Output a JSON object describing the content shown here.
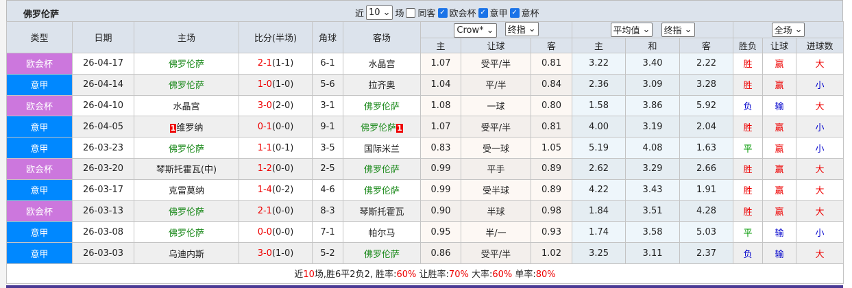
{
  "title": "佛罗伦萨",
  "filters": {
    "recent_label": "近",
    "count": "10",
    "unit": "场",
    "same_away": "同客",
    "same_away_checked": false,
    "leagues": [
      {
        "label": "欧会杯",
        "checked": true
      },
      {
        "label": "意甲",
        "checked": true
      },
      {
        "label": "意杯",
        "checked": true
      }
    ]
  },
  "headers": {
    "type": "类型",
    "date": "日期",
    "home": "主场",
    "score": "比分(半场)",
    "corner": "角球",
    "away": "客场",
    "company_select": "Crow*",
    "handicap_select": "终指",
    "avg_select": "平均值",
    "euro_select": "终指",
    "period_select": "全场",
    "sub": [
      "主",
      "让球",
      "客",
      "主",
      "和",
      "客",
      "胜负",
      "让球",
      "进球数"
    ]
  },
  "colors": {
    "欧会杯": "#cc77dd",
    "意甲": "#0088ff"
  },
  "rows": [
    {
      "type": "欧会杯",
      "date": "26-04-17",
      "home": "佛罗伦萨",
      "score": "2-1",
      "half": "(1-1)",
      "corner": "6-1",
      "away": "水晶宫",
      "h": "1.07",
      "hcap": "受平/半",
      "a": "0.81",
      "eh": "3.22",
      "ed": "3.40",
      "ea": "2.22",
      "res": "胜",
      "hres": "赢",
      "ou": "大"
    },
    {
      "type": "意甲",
      "date": "26-04-14",
      "home": "佛罗伦萨",
      "score": "1-0",
      "half": "(1-0)",
      "corner": "5-6",
      "away": "拉齐奥",
      "h": "1.04",
      "hcap": "平/半",
      "a": "0.84",
      "eh": "2.36",
      "ed": "3.09",
      "ea": "3.28",
      "res": "胜",
      "hres": "赢",
      "ou": "小"
    },
    {
      "type": "欧会杯",
      "date": "26-04-10",
      "home": "水晶宫",
      "score": "3-0",
      "half": "(2-0)",
      "corner": "3-1",
      "away": "佛罗伦萨",
      "h": "1.08",
      "hcap": "一球",
      "a": "0.80",
      "eh": "1.58",
      "ed": "3.86",
      "ea": "5.92",
      "res": "负",
      "hres": "输",
      "ou": "大"
    },
    {
      "type": "意甲",
      "date": "26-04-05",
      "home": "维罗纳",
      "home_card": "1",
      "score": "0-1",
      "half": "(0-0)",
      "corner": "9-1",
      "away": "佛罗伦萨",
      "away_card": "1",
      "h": "1.07",
      "hcap": "受平/半",
      "a": "0.81",
      "eh": "4.00",
      "ed": "3.19",
      "ea": "2.04",
      "res": "胜",
      "hres": "赢",
      "ou": "小"
    },
    {
      "type": "意甲",
      "date": "26-03-23",
      "home": "佛罗伦萨",
      "score": "1-1",
      "half": "(0-1)",
      "corner": "3-5",
      "away": "国际米兰",
      "h": "0.83",
      "hcap": "受一球",
      "a": "1.05",
      "eh": "5.19",
      "ed": "4.08",
      "ea": "1.63",
      "res": "平",
      "hres": "赢",
      "ou": "小"
    },
    {
      "type": "欧会杯",
      "date": "26-03-20",
      "home": "琴斯托霍瓦(中)",
      "score": "1-2",
      "half": "(0-0)",
      "corner": "2-5",
      "away": "佛罗伦萨",
      "h": "0.99",
      "hcap": "平手",
      "a": "0.89",
      "eh": "2.62",
      "ed": "3.29",
      "ea": "2.66",
      "res": "胜",
      "hres": "赢",
      "ou": "大"
    },
    {
      "type": "意甲",
      "date": "26-03-17",
      "home": "克雷莫纳",
      "score": "1-4",
      "half": "(0-2)",
      "corner": "4-6",
      "away": "佛罗伦萨",
      "h": "0.99",
      "hcap": "受半球",
      "a": "0.89",
      "eh": "4.22",
      "ed": "3.43",
      "ea": "1.91",
      "res": "胜",
      "hres": "赢",
      "ou": "大"
    },
    {
      "type": "欧会杯",
      "date": "26-03-13",
      "home": "佛罗伦萨",
      "score": "2-1",
      "half": "(0-0)",
      "corner": "8-3",
      "away": "琴斯托霍瓦",
      "h": "0.90",
      "hcap": "半球",
      "a": "0.98",
      "eh": "1.84",
      "ed": "3.51",
      "ea": "4.28",
      "res": "胜",
      "hres": "赢",
      "ou": "大"
    },
    {
      "type": "意甲",
      "date": "26-03-08",
      "home": "佛罗伦萨",
      "score": "0-0",
      "half": "(0-0)",
      "corner": "7-1",
      "away": "帕尔马",
      "h": "0.95",
      "hcap": "半/一",
      "a": "0.93",
      "eh": "1.74",
      "ed": "3.58",
      "ea": "5.03",
      "res": "平",
      "hres": "输",
      "ou": "小"
    },
    {
      "type": "意甲",
      "date": "26-03-03",
      "home": "乌迪内斯",
      "score": "3-0",
      "half": "(1-0)",
      "corner": "5-2",
      "away": "佛罗伦萨",
      "h": "0.86",
      "hcap": "受平/半",
      "a": "1.02",
      "eh": "3.25",
      "ed": "3.11",
      "ea": "2.37",
      "res": "负",
      "hres": "输",
      "ou": "大"
    }
  ],
  "footer": [
    {
      "t": "近"
    },
    {
      "t": "10",
      "red": true
    },
    {
      "t": "场,胜6平2负2, 胜率:"
    },
    {
      "t": "60%",
      "red": true
    },
    {
      "t": " 让胜率:"
    },
    {
      "t": "70%",
      "red": true
    },
    {
      "t": " 大率:"
    },
    {
      "t": "60%",
      "red": true
    },
    {
      "t": " 单率:"
    },
    {
      "t": "80%",
      "red": true
    }
  ]
}
